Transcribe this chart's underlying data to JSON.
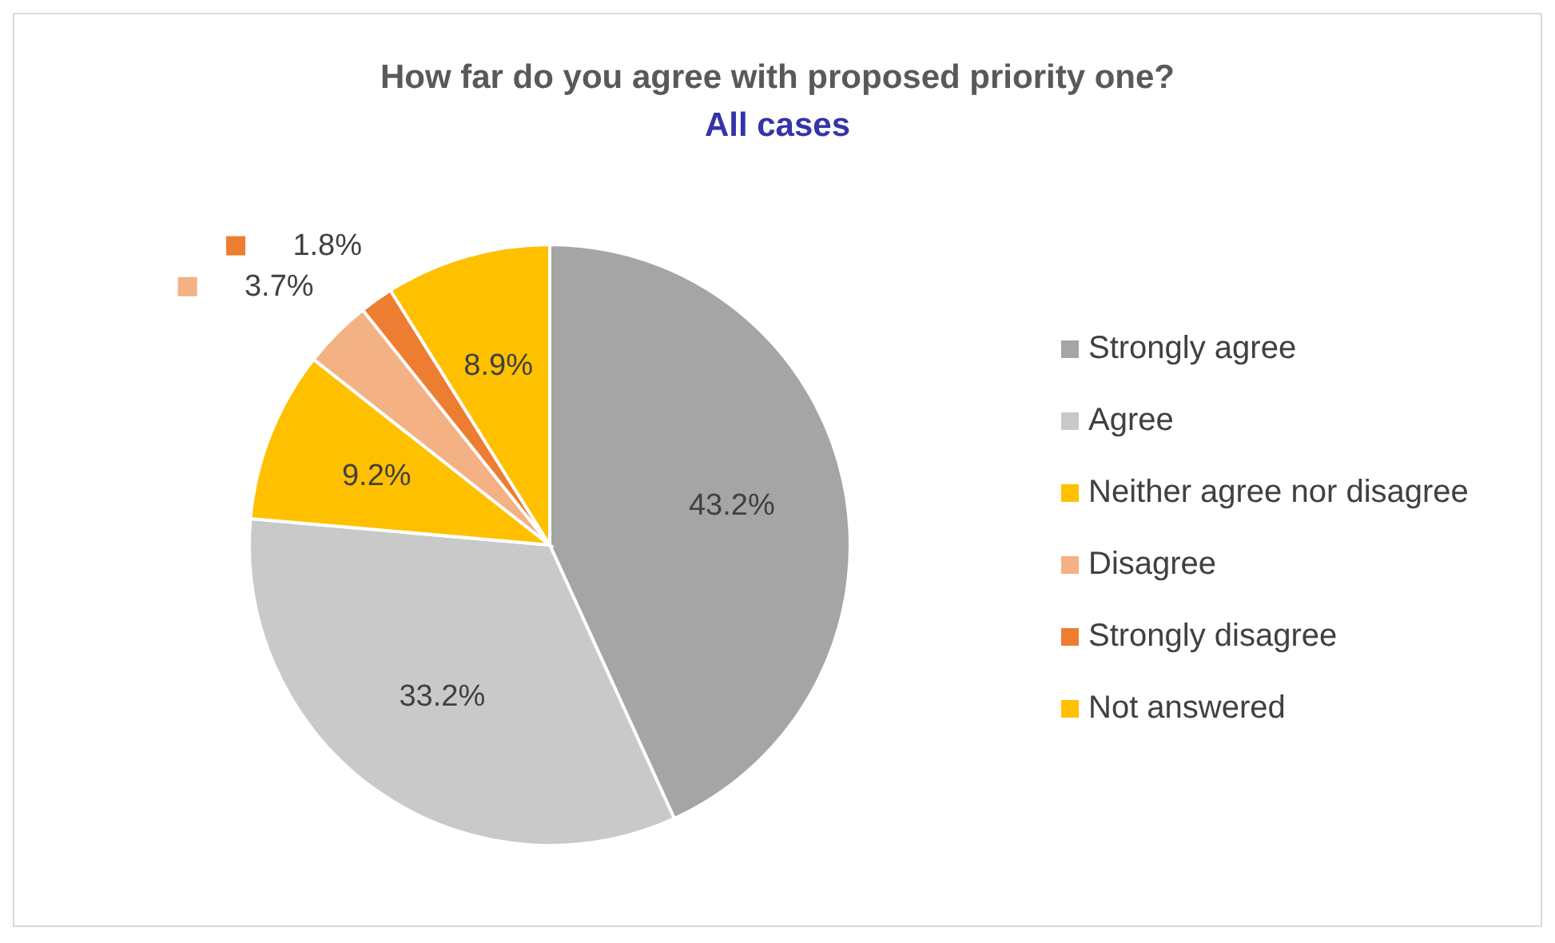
{
  "chart_data": {
    "type": "pie",
    "title": "How far do you agree with proposed priority one?",
    "subtitle": "All cases",
    "categories": [
      "Strongly agree",
      "Agree",
      "Neither agree nor disagree",
      "Disagree",
      "Strongly disagree",
      "Not answered"
    ],
    "values": [
      43.2,
      33.2,
      9.2,
      3.7,
      1.8,
      8.9
    ],
    "value_labels": [
      "43.2%",
      "33.2%",
      "9.2%",
      "3.7%",
      "1.8%",
      "8.9%"
    ],
    "colors": [
      "#a5a5a5",
      "#c9c9c9",
      "#ffc000",
      "#f4b183",
      "#ed7d31",
      "#ffc000"
    ],
    "legend": "right"
  }
}
